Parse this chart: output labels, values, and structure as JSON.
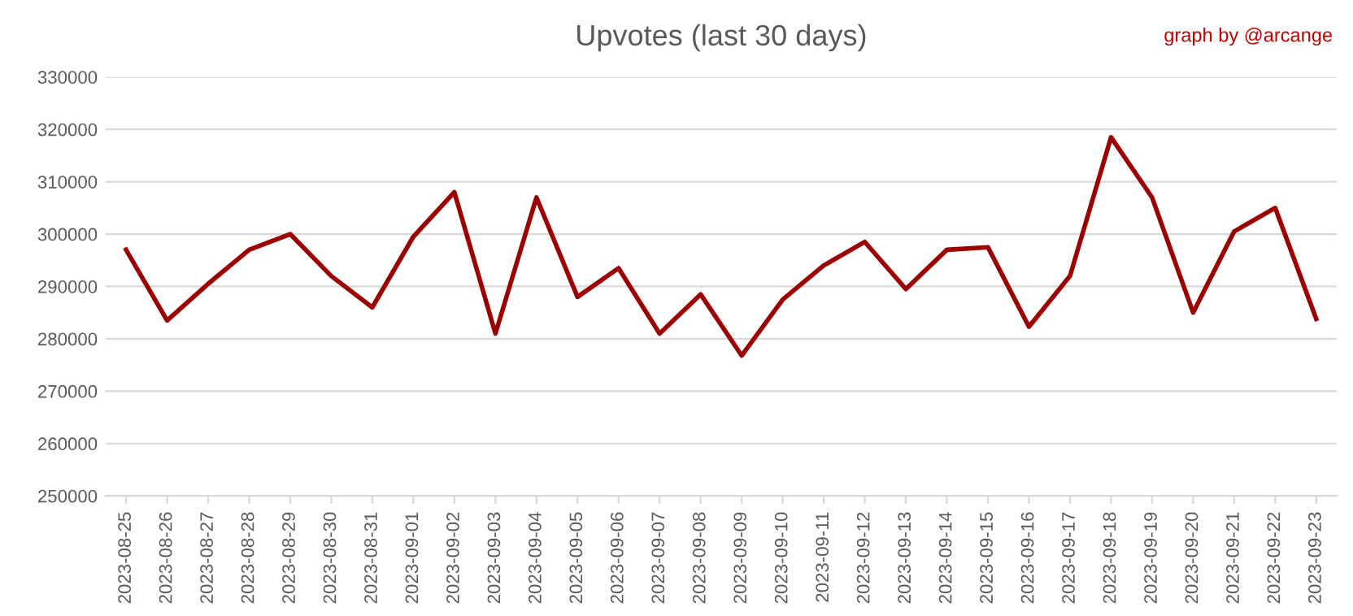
{
  "chart_data": {
    "type": "line",
    "title": "Upvotes (last 30 days)",
    "annotations": [
      "graph by @arcange"
    ],
    "categories": [
      "2023-08-25",
      "2023-08-26",
      "2023-08-27",
      "2023-08-28",
      "2023-08-29",
      "2023-08-30",
      "2023-08-31",
      "2023-09-01",
      "2023-09-02",
      "2023-09-03",
      "2023-09-04",
      "2023-09-05",
      "2023-09-06",
      "2023-09-07",
      "2023-09-08",
      "2023-09-09",
      "2023-09-10",
      "2023-09-11",
      "2023-09-12",
      "2023-09-13",
      "2023-09-14",
      "2023-09-15",
      "2023-09-16",
      "2023-09-17",
      "2023-09-18",
      "2023-09-19",
      "2023-09-20",
      "2023-09-21",
      "2023-09-22",
      "2023-09-23"
    ],
    "series": [
      {
        "color": "#9c0000",
        "values": [
          297000,
          283500,
          290500,
          297000,
          300000,
          292000,
          286000,
          299500,
          308000,
          281000,
          307000,
          288000,
          293500,
          281000,
          288500,
          276800,
          287500,
          294000,
          298500,
          289500,
          297000,
          297500,
          282300,
          292000,
          318500,
          307000,
          285000,
          300500,
          305000,
          283800
        ]
      }
    ],
    "ylim": [
      250000,
      330000
    ],
    "yticks": [
      250000,
      260000,
      270000,
      280000,
      290000,
      300000,
      310000,
      320000,
      330000
    ],
    "grid": "y",
    "marker": "none",
    "line_style": "solid"
  }
}
